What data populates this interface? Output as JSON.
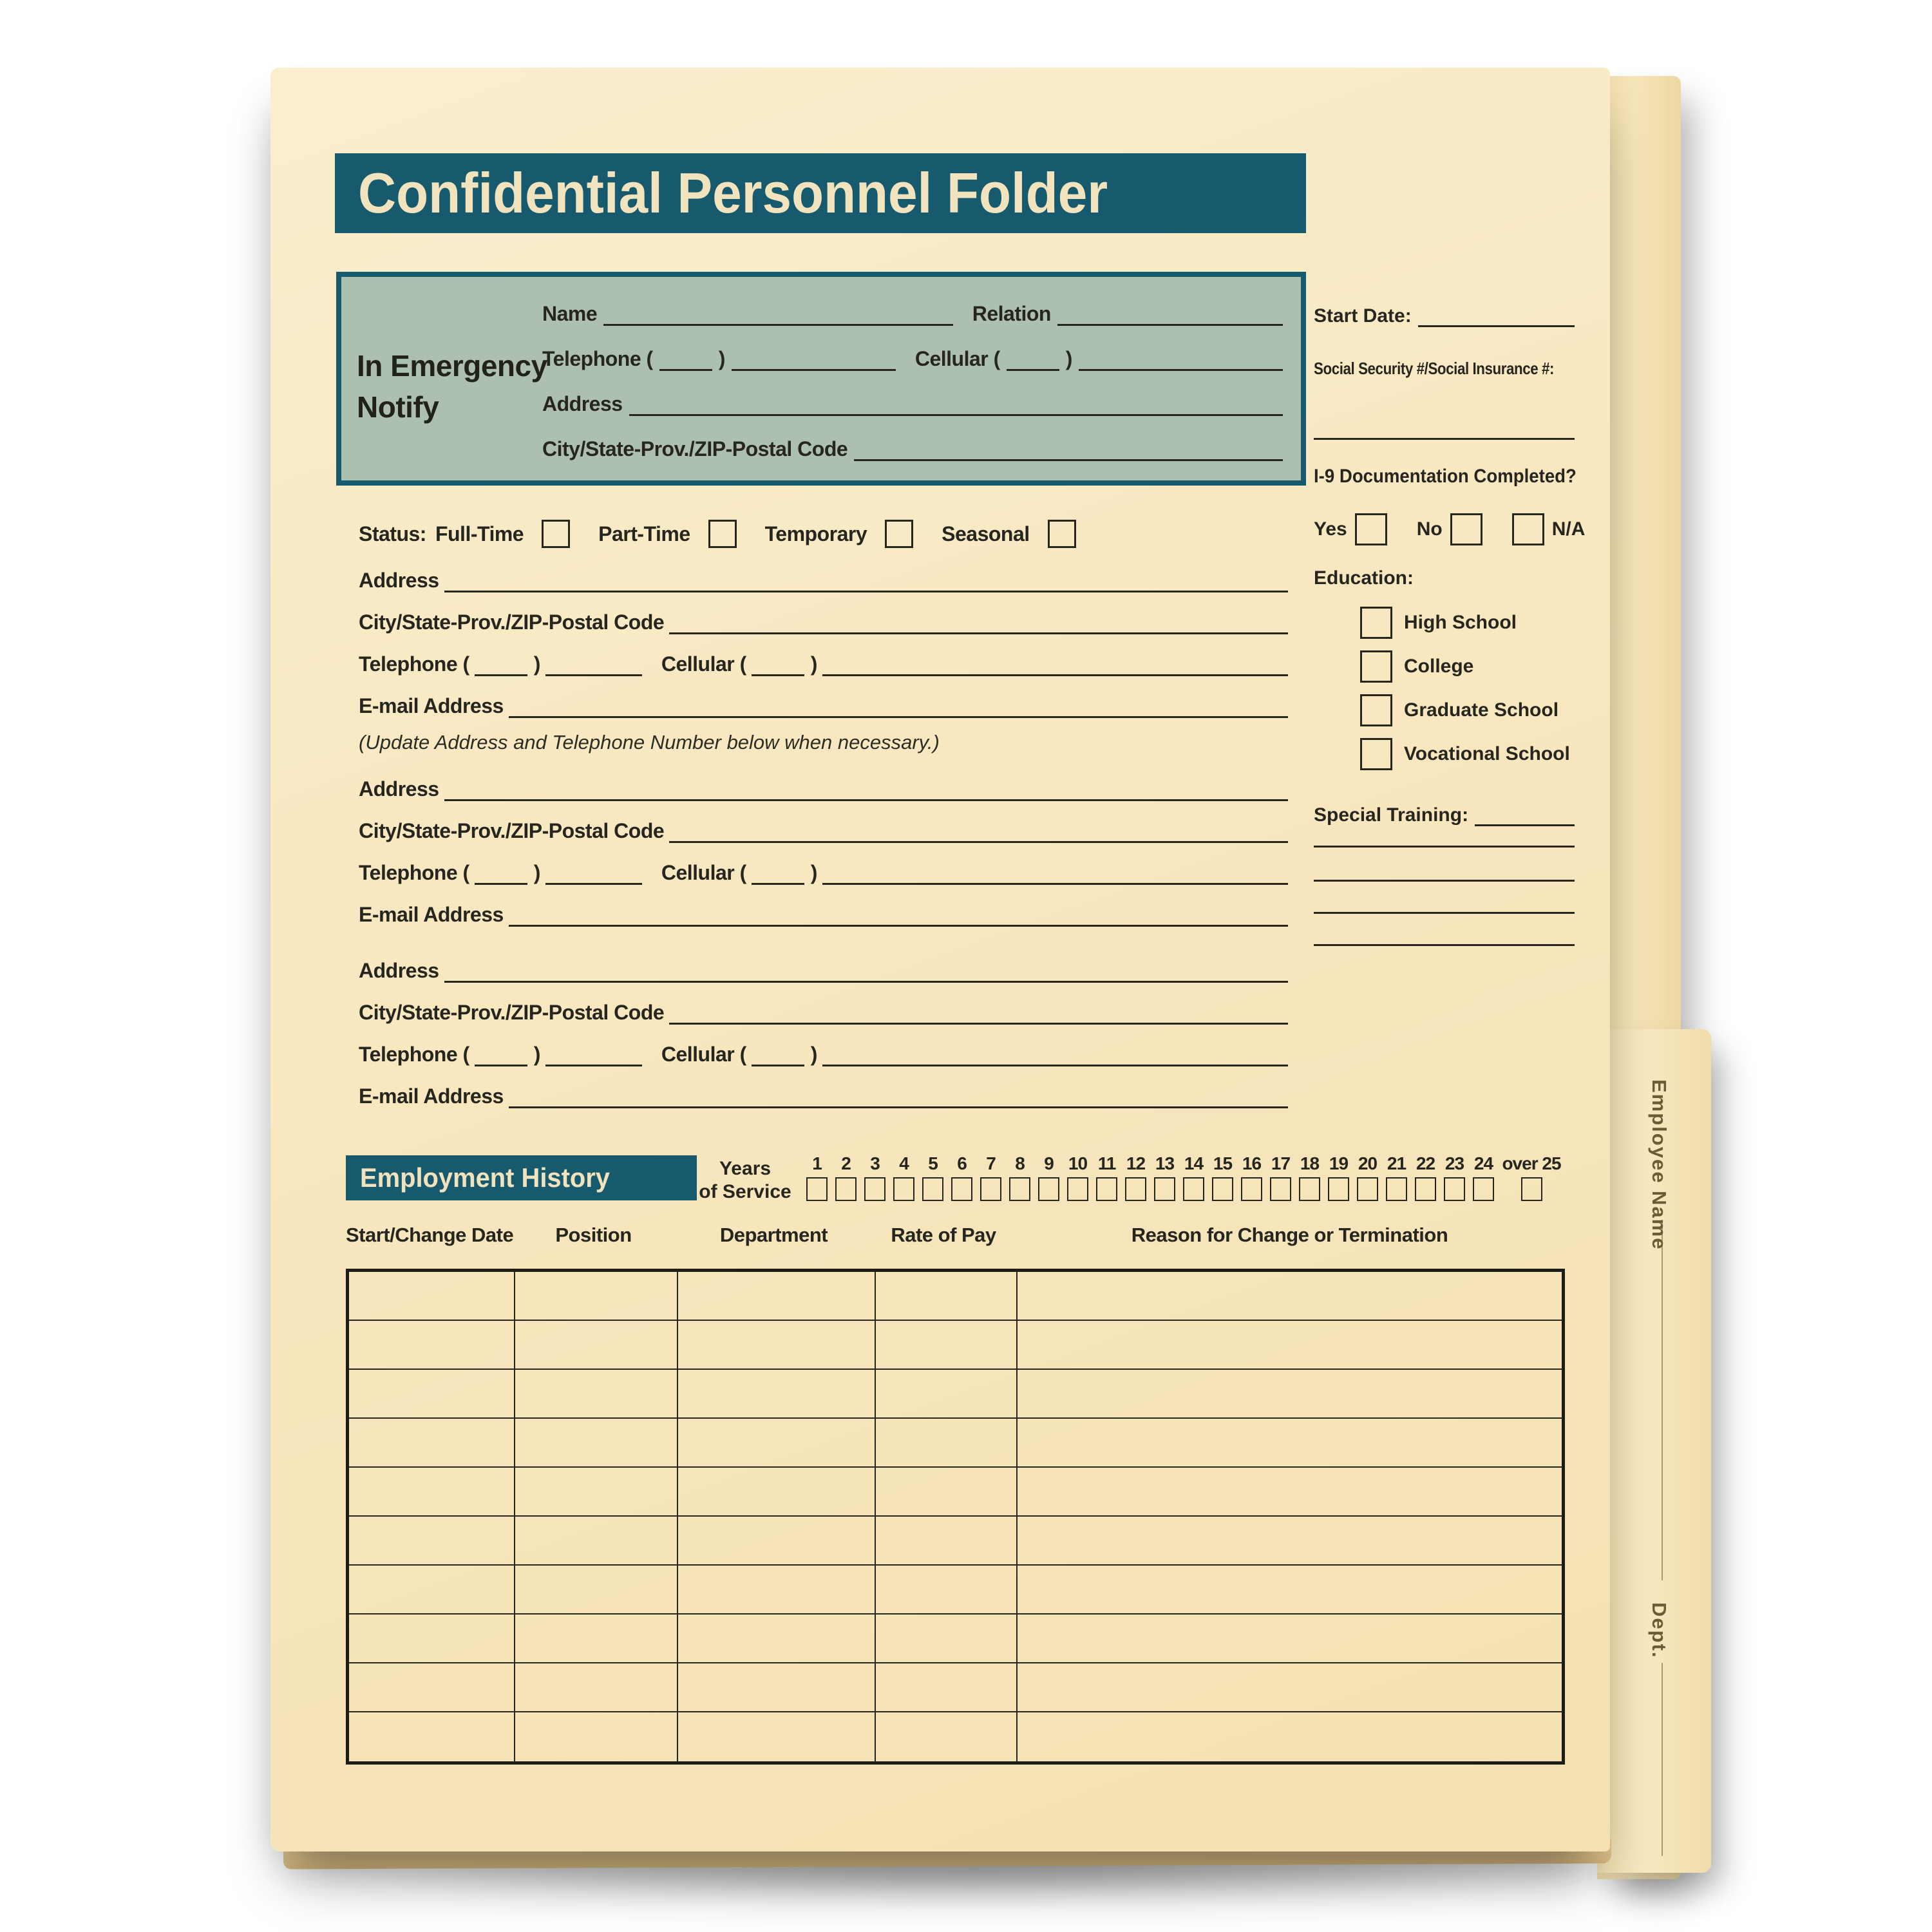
{
  "colors": {
    "teal": "#175a6e",
    "page_cream": "#f8e9c5",
    "title_text": "#f1e3bd",
    "sage": "#adc0af",
    "ink": "#26261f",
    "tab_text": "#6a5c34"
  },
  "title": "Confidential Personnel Folder",
  "emergency": {
    "heading_line1": "In Emergency",
    "heading_line2": "Notify",
    "name_label": "Name",
    "relation_label": "Relation",
    "telephone_prefix": "Telephone (",
    "cellular_prefix": "Cellular (",
    "paren_close": ")",
    "address_label": "Address",
    "city_label": "City/State-Prov./ZIP-Postal Code"
  },
  "status_row": {
    "label": "Status:",
    "options": [
      "Full-Time",
      "Part-Time",
      "Temporary",
      "Seasonal"
    ]
  },
  "contact": {
    "address_label": "Address",
    "city_label": "City/State-Prov./ZIP-Postal Code",
    "telephone_prefix": "Telephone (",
    "cellular_prefix": "Cellular (",
    "paren_close": ")",
    "email_label": "E-mail Address",
    "update_note": "(Update Address and Telephone Number below when necessary.)"
  },
  "right_column": {
    "start_date_label": "Start Date:",
    "ssn_label": "Social Security #/Social Insurance #:",
    "i9_prefix": "I-9",
    "i9_question": " Documentation Completed?",
    "yes_label": "Yes",
    "no_label": "No",
    "na_label": "N/A",
    "education_label": "Education:",
    "education_options": [
      "High School",
      "College",
      "Graduate School",
      "Vocational School"
    ],
    "special_training_label": "Special Training:"
  },
  "employment": {
    "heading": "Employment History",
    "years_label_line1": "Years",
    "years_label_line2": "of Service",
    "year_marks": [
      "1",
      "2",
      "3",
      "4",
      "5",
      "6",
      "7",
      "8",
      "9",
      "10",
      "11",
      "12",
      "13",
      "14",
      "15",
      "16",
      "17",
      "18",
      "19",
      "20",
      "21",
      "22",
      "23",
      "24",
      "over 25"
    ],
    "columns": [
      "Start/Change Date",
      "Position",
      "Department",
      "Rate of Pay",
      "Reason for Change or Termination"
    ],
    "row_count": 10
  },
  "tab": {
    "employee_name_label": "Employee Name",
    "dept_label": "Dept."
  }
}
